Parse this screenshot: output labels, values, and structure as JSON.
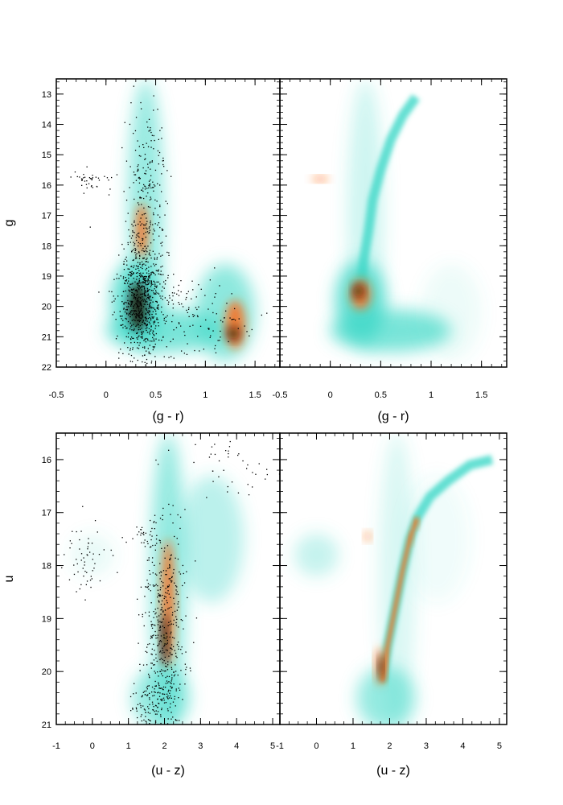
{
  "figure": {
    "description_colors": {
      "low": "#40d8c8",
      "mid": "#ff6a1a",
      "high": "#1a0a05",
      "points": "#000000"
    }
  },
  "chart_data": [
    {
      "type": "scatter",
      "panel": "top-left",
      "xlabel": "(g - r)",
      "ylabel": "g",
      "xlim": [
        -0.5,
        1.75
      ],
      "ylim": [
        22,
        12.5
      ],
      "xticks": [
        "-0.5",
        "0",
        "0.5",
        "1",
        "1.5"
      ],
      "yticks": [
        "13",
        "14",
        "15",
        "16",
        "17",
        "18",
        "19",
        "20",
        "21",
        "22"
      ],
      "blobs": [
        {
          "x": 0.36,
          "y": 17.5,
          "sx": 0.06,
          "sy": 0.9,
          "c": "mid"
        },
        {
          "x": 0.32,
          "y": 20.0,
          "sx": 0.09,
          "sy": 0.8,
          "c": "high"
        },
        {
          "x": 1.3,
          "y": 20.6,
          "sx": 0.1,
          "sy": 0.8,
          "c": "mid"
        },
        {
          "x": 1.28,
          "y": 20.9,
          "sx": 0.06,
          "sy": 0.2,
          "c": "high"
        }
      ],
      "point_clumps": [
        {
          "x": 0.35,
          "y": 19.8,
          "sx": 0.12,
          "sy": 1.0,
          "n": 700
        },
        {
          "x": 0.4,
          "y": 16.5,
          "sx": 0.1,
          "sy": 1.6,
          "n": 250
        },
        {
          "x": -0.15,
          "y": 15.8,
          "sx": 0.12,
          "sy": 0.15,
          "n": 40
        },
        {
          "x": 0.8,
          "y": 20.3,
          "sx": 0.3,
          "sy": 0.7,
          "n": 150
        }
      ]
    },
    {
      "type": "heatmap",
      "panel": "top-right",
      "xlabel": "(g - r)",
      "ylabel": "",
      "xlim": [
        -0.5,
        1.75
      ],
      "ylim": [
        22,
        12.5
      ],
      "xticks": [
        "-0.5",
        "0",
        "0.5",
        "1",
        "1.5"
      ],
      "yticks": [],
      "blobs": [
        {
          "x": 0.3,
          "y": 19.6,
          "sx": 0.1,
          "sy": 0.5,
          "c": "mid"
        },
        {
          "x": 0.28,
          "y": 19.5,
          "sx": 0.05,
          "sy": 0.2,
          "c": "high"
        },
        {
          "x": -0.1,
          "y": 15.8,
          "sx": 0.08,
          "sy": 0.08,
          "c": "mid"
        }
      ]
    },
    {
      "type": "scatter",
      "panel": "bottom-left",
      "xlabel": "(u - z)",
      "ylabel": "u",
      "xlim": [
        -1,
        5.2
      ],
      "ylim": [
        21,
        15.5
      ],
      "xticks": [
        "-1",
        "0",
        "1",
        "2",
        "3",
        "4",
        "5"
      ],
      "yticks": [
        "16",
        "17",
        "18",
        "19",
        "20",
        "21"
      ],
      "blobs": [
        {
          "x": 2.1,
          "y": 18.7,
          "sx": 0.18,
          "sy": 1.2,
          "c": "mid"
        },
        {
          "x": 2.0,
          "y": 19.4,
          "sx": 0.1,
          "sy": 0.5,
          "c": "high"
        }
      ],
      "point_clumps": [
        {
          "x": 2.0,
          "y": 19.3,
          "sx": 0.3,
          "sy": 1.1,
          "n": 450
        },
        {
          "x": -0.1,
          "y": 17.9,
          "sx": 0.35,
          "sy": 0.35,
          "n": 60
        },
        {
          "x": 1.5,
          "y": 17.4,
          "sx": 0.15,
          "sy": 0.12,
          "n": 30
        },
        {
          "x": 3.8,
          "y": 16.2,
          "sx": 0.6,
          "sy": 0.3,
          "n": 40
        },
        {
          "x": 1.7,
          "y": 20.6,
          "sx": 0.3,
          "sy": 0.3,
          "n": 120
        }
      ]
    },
    {
      "type": "heatmap",
      "panel": "bottom-right",
      "xlabel": "(u - z)",
      "ylabel": "",
      "xlim": [
        -1,
        5.2
      ],
      "ylim": [
        21,
        15.5
      ],
      "xticks": [
        "-1",
        "0",
        "1",
        "2",
        "3",
        "4",
        "5"
      ],
      "yticks": [],
      "blobs": [
        {
          "x": 1.75,
          "y": 19.9,
          "sx": 0.12,
          "sy": 0.35,
          "c": "mid"
        },
        {
          "x": 1.75,
          "y": 19.9,
          "sx": 0.06,
          "sy": 0.2,
          "c": "high"
        },
        {
          "x": 1.4,
          "y": 17.45,
          "sx": 0.08,
          "sy": 0.08,
          "c": "mid"
        },
        {
          "x": 2.75,
          "y": 17.2,
          "sx": 0.05,
          "sy": 0.08,
          "c": "mid"
        },
        {
          "x": 2.6,
          "y": 17.5,
          "sx": 0.05,
          "sy": 0.08,
          "c": "mid"
        }
      ]
    }
  ]
}
